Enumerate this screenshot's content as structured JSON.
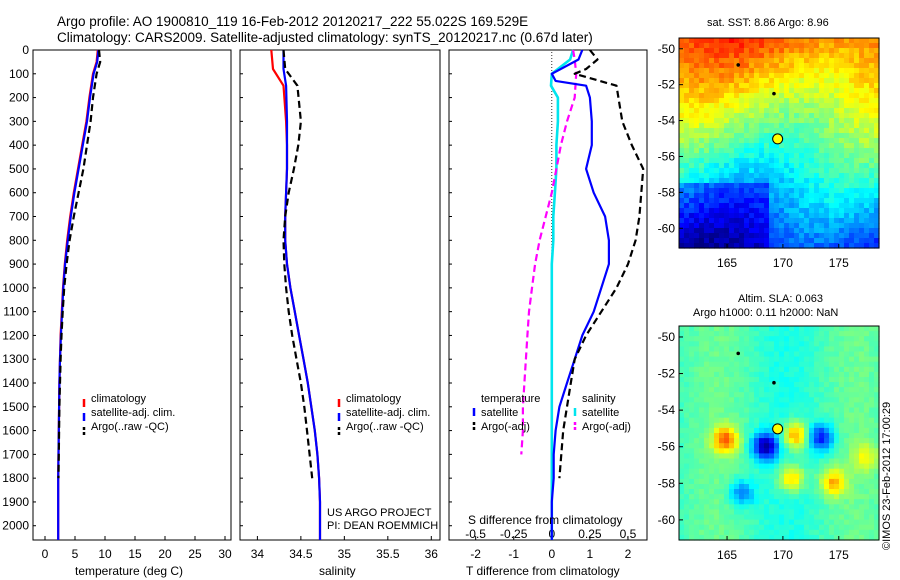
{
  "header": {
    "line1": "Argo profile: AO 1900810_119 16-Feb-2012 20120217_222 55.022S 169.529E",
    "line2": "Climatology: CARS2009. Satellite-adjusted climatology: synTS_20120217.nc (0.67d later)"
  },
  "credit": "©IMOS 23-Feb-2012 17:00:29",
  "project": [
    "US ARGO PROJECT",
    "PI: DEAN ROEMMICH"
  ],
  "colors": {
    "climatology": "#ff0000",
    "satellite": "#0000ff",
    "argo": "#000000",
    "sat_t_diff": "#00e5ee",
    "sat_s_diff": "#ff00ff",
    "marker_fill": "#ffff00"
  },
  "depth_ticks": [
    0,
    100,
    200,
    300,
    400,
    500,
    600,
    700,
    800,
    900,
    1000,
    1100,
    1200,
    1300,
    1400,
    1500,
    1600,
    1700,
    1800,
    1900,
    2000
  ],
  "panels": {
    "temperature": {
      "xlabel": "temperature (deg C)",
      "xlim": [
        -2,
        31
      ],
      "ylim": [
        0,
        2060
      ],
      "ticks": [
        "0",
        "5",
        "10",
        "15",
        "20",
        "25",
        "30"
      ],
      "legend": [
        "climatology",
        "satellite-adj. clim.",
        "Argo(..raw -QC)"
      ]
    },
    "salinity": {
      "xlabel": "salinity",
      "xlim": [
        33.8,
        36.1
      ],
      "ylim": [
        0,
        2060
      ],
      "ticks": [
        "34",
        "34.5",
        "35",
        "35.5",
        "36"
      ],
      "legend": [
        "climatology",
        "satellite-adj. clim.",
        "Argo(..raw -QC)"
      ]
    },
    "difference": {
      "xlabel_t": "T difference from climatology",
      "xlabel_s": "S difference from climatology",
      "xlim": [
        -2.7,
        2.5
      ],
      "ylim": [
        0,
        2060
      ],
      "ticks_t": [
        "-2",
        "-1",
        "0",
        "1",
        "2"
      ],
      "ticks_s": [
        "-0.5",
        "-0.25",
        "0",
        "0.25",
        "0.5"
      ],
      "legend_t_title": "temperature",
      "legend_t": [
        "satellite",
        "Argo(-adj)"
      ],
      "legend_s_title": "salinity",
      "legend_s": [
        "satellite",
        "Argo(-adj)"
      ]
    }
  },
  "maps": {
    "sst": {
      "title": "sat. SST: 8.86 Argo: 8.96",
      "lat_ticks": [
        "-50",
        "-52",
        "-54",
        "-56",
        "-58",
        "-60"
      ],
      "lon_ticks": [
        "165",
        "170",
        "175"
      ]
    },
    "sla": {
      "title1": "Altim. SLA: 0.063",
      "title2": "Argo h1000: 0.11 h2000: NaN",
      "lat_ticks": [
        "-50",
        "-52",
        "-54",
        "-56",
        "-58",
        "-60"
      ],
      "lon_ticks": [
        "165",
        "170",
        "175"
      ]
    },
    "lon_range": [
      160.7,
      178.6
    ],
    "lat_range": [
      -61.1,
      -49.4
    ],
    "argo_position": {
      "lon": 169.529,
      "lat": -55.022
    },
    "other_floats": [
      {
        "lon": 166.0,
        "lat": -50.9
      },
      {
        "lon": 169.2,
        "lat": -52.5
      }
    ]
  },
  "chart_data": [
    {
      "type": "line",
      "title": "",
      "xlabel": "temperature (deg C)",
      "ylabel": "",
      "xlim": [
        -2,
        31
      ],
      "ylim": [
        0,
        2060
      ],
      "series": [
        {
          "name": "climatology",
          "x": [
            8.8,
            8.6,
            8.0,
            7.4,
            6.9,
            6.2,
            5.5,
            4.8,
            4.2,
            3.7,
            3.3,
            3.0,
            2.8,
            2.6,
            2.5,
            2.4,
            2.35,
            2.3,
            2.25,
            2.2,
            2.2
          ],
          "y": [
            0,
            50,
            100,
            200,
            300,
            400,
            500,
            600,
            700,
            800,
            900,
            1000,
            1100,
            1200,
            1300,
            1400,
            1500,
            1600,
            1700,
            1800,
            2060
          ]
        },
        {
          "name": "satellite-adj. clim.",
          "x": [
            8.9,
            8.7,
            8.1,
            7.5,
            7.0,
            6.3,
            5.6,
            4.9,
            4.3,
            3.8,
            3.35,
            3.05,
            2.85,
            2.65,
            2.5,
            2.4,
            2.35,
            2.3,
            2.25,
            2.2,
            2.2
          ],
          "y": [
            0,
            50,
            100,
            200,
            300,
            400,
            500,
            600,
            700,
            800,
            900,
            1000,
            1100,
            1200,
            1300,
            1400,
            1500,
            1600,
            1700,
            1800,
            2060
          ]
        },
        {
          "name": "Argo(..raw -QC)",
          "x": [
            9.0,
            9.2,
            8.6,
            8.0,
            7.6,
            7.0,
            6.4,
            5.6,
            4.8,
            4.1,
            3.6,
            3.2,
            2.95,
            2.75,
            2.6,
            2.5,
            2.4,
            2.35,
            2.3,
            2.25
          ],
          "y": [
            0,
            50,
            100,
            200,
            300,
            400,
            500,
            600,
            700,
            800,
            900,
            1000,
            1100,
            1200,
            1300,
            1400,
            1500,
            1600,
            1700,
            1800
          ]
        }
      ]
    },
    {
      "type": "line",
      "title": "",
      "xlabel": "salinity",
      "ylabel": "",
      "xlim": [
        33.8,
        36.1
      ],
      "ylim": [
        0,
        2060
      ],
      "series": [
        {
          "name": "climatology",
          "x": [
            34.16,
            34.18,
            34.3,
            34.33,
            34.34,
            34.34,
            34.33,
            34.32,
            34.32,
            34.34,
            34.38,
            34.43,
            34.48,
            34.53,
            34.58,
            34.62,
            34.66,
            34.69,
            34.71,
            34.72,
            34.72
          ],
          "y": [
            0,
            80,
            150,
            300,
            400,
            500,
            600,
            700,
            800,
            900,
            1000,
            1100,
            1200,
            1300,
            1400,
            1500,
            1600,
            1700,
            1800,
            1900,
            2060
          ]
        },
        {
          "name": "satellite-adj. clim.",
          "x": [
            34.3,
            34.3,
            34.33,
            34.34,
            34.34,
            34.34,
            34.33,
            34.32,
            34.32,
            34.34,
            34.38,
            34.43,
            34.48,
            34.53,
            34.58,
            34.62,
            34.66,
            34.69,
            34.71,
            34.72,
            34.72
          ],
          "y": [
            0,
            80,
            150,
            300,
            400,
            500,
            600,
            700,
            800,
            900,
            1000,
            1100,
            1200,
            1300,
            1400,
            1500,
            1600,
            1700,
            1800,
            1900,
            2060
          ]
        },
        {
          "name": "Argo(..raw -QC)",
          "x": [
            34.3,
            34.32,
            34.46,
            34.5,
            34.47,
            34.42,
            34.36,
            34.32,
            34.3,
            34.31,
            34.33,
            34.36,
            34.4,
            34.45,
            34.5,
            34.54,
            34.57,
            34.6,
            34.63
          ],
          "y": [
            0,
            80,
            150,
            300,
            400,
            500,
            600,
            700,
            800,
            900,
            1000,
            1100,
            1200,
            1300,
            1400,
            1500,
            1600,
            1700,
            1800
          ]
        }
      ]
    },
    {
      "type": "line",
      "title": "",
      "xlabel": "T difference from climatology",
      "ylabel": "",
      "xlim": [
        -2.7,
        2.5
      ],
      "ylim": [
        0,
        2060
      ],
      "series": [
        {
          "name": "satellite",
          "x": [
            0.8,
            0.7,
            0.0,
            0.1,
            0.9,
            1.0,
            1.05,
            1.05,
            0.9,
            1.1,
            1.4,
            1.5,
            1.5,
            1.3,
            1.1,
            0.8,
            0.6,
            0.4,
            0.2,
            0.1,
            0.05,
            0.05,
            0.0,
            0.0,
            0.0,
            0.0
          ],
          "y": [
            0,
            40,
            100,
            130,
            150,
            200,
            300,
            400,
            500,
            600,
            700,
            800,
            900,
            1000,
            1100,
            1200,
            1300,
            1400,
            1500,
            1600,
            1700,
            1800,
            1900,
            2000,
            2060,
            2060
          ]
        },
        {
          "name": "Argo(-adj)",
          "x": [
            1.0,
            1.2,
            0.9,
            0.6,
            1.7,
            1.75,
            1.85,
            2.1,
            2.4,
            2.35,
            2.3,
            2.2,
            2.0,
            1.7,
            1.3,
            0.9,
            0.6,
            0.5,
            0.4,
            0.3,
            0.25,
            0.2
          ],
          "y": [
            0,
            40,
            80,
            100,
            150,
            200,
            300,
            400,
            500,
            600,
            700,
            800,
            900,
            1000,
            1100,
            1200,
            1300,
            1400,
            1500,
            1600,
            1700,
            1800
          ]
        }
      ]
    },
    {
      "type": "line",
      "title": "",
      "xlabel": "S difference from climatology",
      "ylabel": "",
      "xlim": [
        -0.675,
        0.625
      ],
      "ylim": [
        0,
        2060
      ],
      "series": [
        {
          "name": "satellite",
          "x": [
            0.14,
            0.12,
            0.0,
            -0.005,
            0.04,
            0.04,
            0.03,
            0.03,
            0.02,
            0.01,
            0.01,
            0.0,
            0.0,
            0.0,
            0.0,
            0.0,
            0.0,
            0.0,
            0.0,
            0.0,
            0.0,
            0.0,
            0.0,
            0.0,
            0.0
          ],
          "y": [
            0,
            40,
            100,
            150,
            200,
            300,
            400,
            500,
            600,
            700,
            800,
            900,
            1000,
            1100,
            1200,
            1300,
            1400,
            1500,
            1600,
            1700,
            1800,
            1900,
            2000,
            2060,
            2060
          ]
        },
        {
          "name": "Argo(-adj)",
          "x": [
            0.14,
            0.15,
            0.16,
            0.15,
            0.1,
            0.06,
            0.03,
            0.0,
            -0.04,
            -0.08,
            -0.11,
            -0.13,
            -0.15,
            -0.16,
            -0.17,
            -0.18,
            -0.19,
            -0.19,
            -0.2
          ],
          "y": [
            0,
            40,
            100,
            200,
            300,
            400,
            500,
            600,
            700,
            800,
            900,
            1000,
            1100,
            1200,
            1300,
            1400,
            1500,
            1600,
            1700
          ]
        }
      ]
    }
  ]
}
